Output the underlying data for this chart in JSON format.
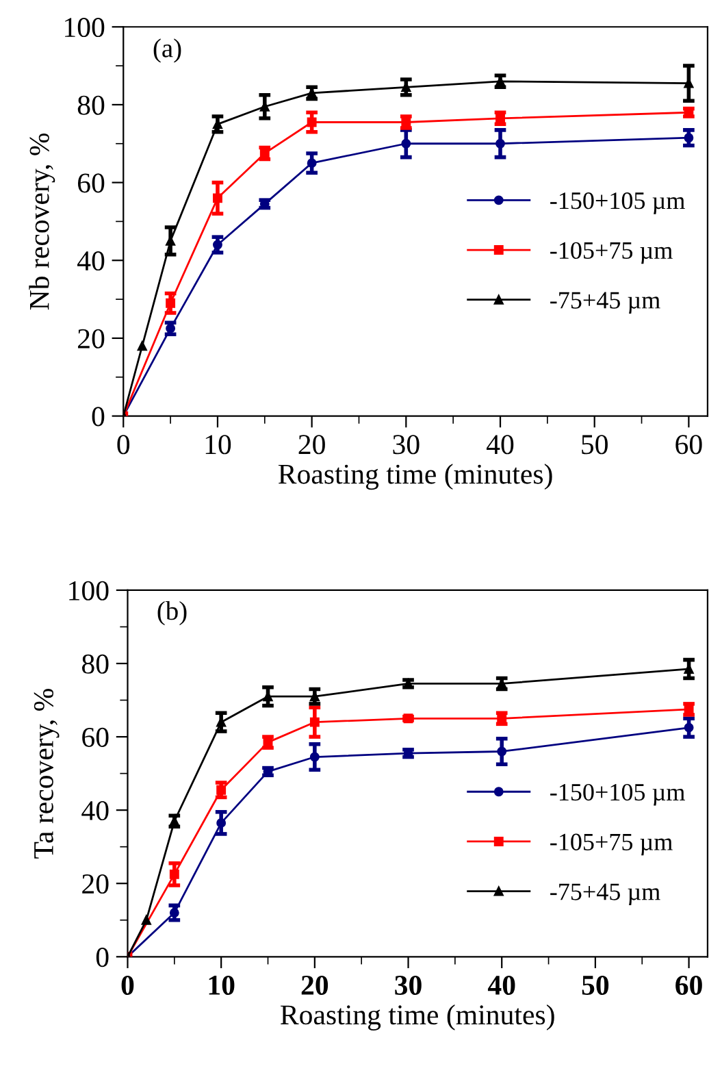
{
  "chart_data": [
    {
      "type": "line",
      "xlabel": "Roasting time (minutes)",
      "ylabel": "Nb recovery, %",
      "annotations": [
        "(a)"
      ],
      "xlim": [
        0,
        62
      ],
      "ylim": [
        0,
        100
      ],
      "xticks": [
        0,
        10,
        20,
        30,
        40,
        50,
        60
      ],
      "yticks": [
        0,
        20,
        40,
        60,
        80,
        100
      ],
      "grid": false,
      "legend": "right",
      "line_style": "solid",
      "series": [
        {
          "name": "-150+105 µm",
          "color": "#000080",
          "marker": "circle",
          "x": [
            0,
            5,
            10,
            15,
            20,
            30,
            40,
            60
          ],
          "values": [
            0,
            22.5,
            44,
            54.5,
            65,
            70,
            70,
            71.5
          ],
          "errors": [
            null,
            1.5,
            2,
            1,
            2.5,
            3.5,
            3.5,
            2
          ]
        },
        {
          "name": "-105+75 µm",
          "color": "#ff0000",
          "marker": "square",
          "x": [
            0,
            5,
            10,
            15,
            20,
            30,
            40,
            60
          ],
          "values": [
            0,
            29,
            56,
            67.5,
            75.5,
            75.5,
            76.5,
            78
          ],
          "errors": [
            null,
            2.5,
            4,
            1.5,
            2.5,
            1.5,
            1.5,
            1
          ]
        },
        {
          "name": "-75+45 µm",
          "color": "#000000",
          "marker": "triangle",
          "x": [
            0,
            2,
            5,
            10,
            15,
            20,
            30,
            40,
            60
          ],
          "values": [
            0,
            18,
            45,
            75,
            79.5,
            83,
            84.5,
            86,
            85.5
          ],
          "errors": [
            null,
            null,
            3.5,
            2,
            3,
            1.5,
            2,
            1.5,
            4.5
          ]
        }
      ]
    },
    {
      "type": "line",
      "xlabel": "Roasting time (minutes)",
      "ylabel": "Ta recovery, %",
      "annotations": [
        "(b)"
      ],
      "xlim": [
        0,
        62
      ],
      "ylim": [
        0,
        100
      ],
      "xticks": [
        0,
        10,
        20,
        30,
        40,
        50,
        60
      ],
      "yticks": [
        0,
        20,
        40,
        60,
        80,
        100
      ],
      "grid": false,
      "legend": "bottom right",
      "line_style": "solid",
      "series": [
        {
          "name": "-150+105 µm",
          "color": "#000080",
          "marker": "circle",
          "x": [
            0,
            5,
            10,
            15,
            20,
            30,
            40,
            60
          ],
          "values": [
            0,
            12,
            36.5,
            50.5,
            54.5,
            55.5,
            56,
            62.5
          ],
          "errors": [
            null,
            2,
            3,
            1,
            3.5,
            1,
            3.5,
            2.5
          ]
        },
        {
          "name": "-105+75 µm",
          "color": "#ff0000",
          "marker": "square",
          "x": [
            0,
            5,
            10,
            15,
            20,
            30,
            40,
            60
          ],
          "values": [
            0,
            22.5,
            45.5,
            58.5,
            64,
            65,
            65,
            67.5
          ],
          "errors": [
            null,
            3,
            2,
            1.5,
            4,
            0.5,
            1.5,
            1.5
          ]
        },
        {
          "name": "-75+45 µm",
          "color": "#000000",
          "marker": "triangle",
          "x": [
            0,
            2,
            5,
            10,
            15,
            20,
            30,
            40,
            60
          ],
          "values": [
            0,
            10,
            37,
            64,
            71,
            71,
            74.5,
            74.5,
            78.5
          ],
          "errors": [
            null,
            null,
            1.5,
            2.5,
            2.5,
            2,
            1,
            1.5,
            2.5
          ]
        }
      ]
    }
  ]
}
